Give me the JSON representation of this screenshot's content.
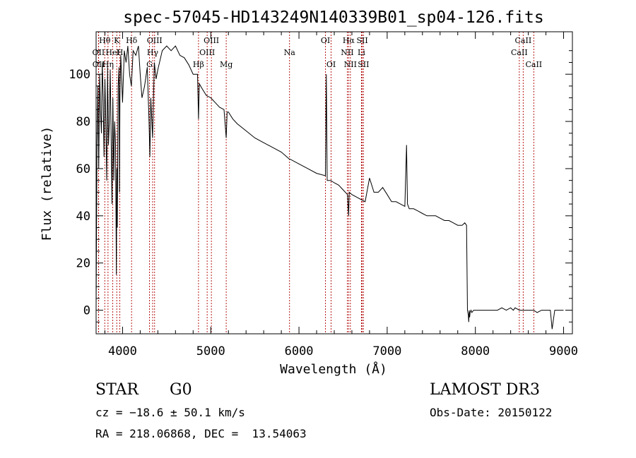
{
  "chart_data": {
    "type": "line",
    "title": "spec-57045-HD143249N140339B01_sp04-126.fits",
    "xlabel": "Wavelength (Å)",
    "ylabel": "Flux (relative)",
    "xlim": [
      3700,
      9100
    ],
    "ylim": [
      -10,
      118
    ],
    "xticks": [
      4000,
      5000,
      6000,
      7000,
      8000,
      9000
    ],
    "yticks": [
      0,
      20,
      40,
      60,
      80,
      100
    ],
    "grid": false,
    "series": [
      {
        "name": "spectrum",
        "x": [
          3700,
          3710,
          3720,
          3730,
          3740,
          3750,
          3760,
          3770,
          3780,
          3790,
          3800,
          3810,
          3820,
          3830,
          3840,
          3850,
          3860,
          3870,
          3880,
          3890,
          3900,
          3910,
          3920,
          3930,
          3935,
          3940,
          3950,
          3960,
          3965,
          3970,
          3980,
          3990,
          4000,
          4020,
          4040,
          4060,
          4080,
          4100,
          4120,
          4150,
          4180,
          4200,
          4220,
          4250,
          4280,
          4300,
          4310,
          4320,
          4340,
          4360,
          4380,
          4400,
          4450,
          4500,
          4550,
          4600,
          4650,
          4700,
          4750,
          4800,
          4850,
          4861,
          4870,
          4900,
          4950,
          5000,
          5050,
          5100,
          5150,
          5175,
          5185,
          5200,
          5250,
          5300,
          5400,
          5500,
          5600,
          5700,
          5800,
          5893,
          5900,
          6000,
          6100,
          6200,
          6300,
          6310,
          6320,
          6360,
          6400,
          6450,
          6500,
          6550,
          6563,
          6570,
          6600,
          6650,
          6700,
          6750,
          6800,
          6850,
          6900,
          6950,
          7000,
          7050,
          7100,
          7150,
          7200,
          7220,
          7230,
          7250,
          7300,
          7350,
          7400,
          7450,
          7500,
          7550,
          7600,
          7650,
          7700,
          7750,
          7800,
          7850,
          7880,
          7900,
          7910,
          7920,
          7925,
          7930,
          7935,
          7940,
          7950,
          7960,
          7980,
          8000,
          8050,
          8100,
          8150,
          8200,
          8250,
          8300,
          8350,
          8400,
          8430,
          8450,
          8500,
          8542,
          8550,
          8600,
          8650,
          8662,
          8700,
          8750,
          8800,
          8850,
          8870,
          8900,
          8950,
          9000
        ],
        "values": [
          0,
          70,
          95,
          60,
          100,
          85,
          75,
          105,
          90,
          65,
          98,
          80,
          55,
          103,
          70,
          80,
          102,
          75,
          45,
          90,
          55,
          80,
          70,
          15,
          60,
          35,
          95,
          103,
          50,
          90,
          108,
          98,
          88,
          110,
          105,
          112,
          100,
          95,
          110,
          108,
          112,
          100,
          90,
          95,
          103,
          80,
          65,
          90,
          73,
          105,
          98,
          102,
          110,
          112,
          110,
          112,
          108,
          107,
          104,
          100,
          100,
          81,
          96,
          94,
          91,
          90,
          88,
          86,
          85,
          73,
          84,
          84,
          81,
          79,
          76,
          73,
          71,
          69,
          67,
          64,
          64,
          62,
          60,
          58,
          57,
          100,
          55,
          55,
          54,
          53,
          51,
          49,
          40,
          50,
          49,
          48,
          47,
          46,
          56,
          50,
          50,
          52,
          49,
          46,
          46,
          45,
          44,
          70,
          45,
          43,
          43,
          42,
          41,
          40,
          40,
          40,
          39,
          38,
          38,
          37,
          36,
          36,
          37,
          36,
          0,
          -2,
          -5,
          0,
          -3,
          -1,
          0,
          -1,
          0,
          0,
          0,
          0,
          0,
          0,
          0,
          1,
          0,
          1,
          0,
          1,
          0,
          0,
          0,
          0,
          0,
          0,
          -1,
          0,
          0,
          0,
          -8,
          0,
          0,
          0
        ]
      }
    ],
    "lines": [
      {
        "label": "Hθ",
        "x": 3798,
        "row": 1
      },
      {
        "label": "OII",
        "x": 3727,
        "row": 2
      },
      {
        "label": "OII",
        "x": 3729,
        "row": 3
      },
      {
        "label": "Hη",
        "x": 3835,
        "row": 3
      },
      {
        "label": "HeI",
        "x": 3889,
        "row": 2
      },
      {
        "label": "K",
        "x": 3934,
        "row": 1
      },
      {
        "label": "H",
        "x": 3969,
        "row": 2
      },
      {
        "label": "Hδ",
        "x": 4102,
        "row": 1
      },
      {
        "label": "G",
        "x": 4305,
        "row": 3
      },
      {
        "label": "OIII",
        "x": 4363,
        "row": 1
      },
      {
        "label": "Hγ",
        "x": 4341,
        "row": 2
      },
      {
        "label": "Hβ",
        "x": 4861,
        "row": 3
      },
      {
        "label": "OIII",
        "x": 4959,
        "row": 2
      },
      {
        "label": "OIII",
        "x": 5007,
        "row": 1
      },
      {
        "label": "Mg",
        "x": 5175,
        "row": 3
      },
      {
        "label": "Na",
        "x": 5893,
        "row": 2
      },
      {
        "label": "OI",
        "x": 6300,
        "row": 1
      },
      {
        "label": "OI",
        "x": 6364,
        "row": 3
      },
      {
        "label": "Hα",
        "x": 6563,
        "row": 1
      },
      {
        "label": "NII",
        "x": 6548,
        "row": 2
      },
      {
        "label": "NII",
        "x": 6583,
        "row": 3
      },
      {
        "label": "SII",
        "x": 6717,
        "row": 1
      },
      {
        "label": "Li",
        "x": 6708,
        "row": 2
      },
      {
        "label": "SII",
        "x": 6731,
        "row": 3
      },
      {
        "label": "CaII",
        "x": 8542,
        "row": 1
      },
      {
        "label": "CaII",
        "x": 8498,
        "row": 2
      },
      {
        "label": "CaII",
        "x": 8662,
        "row": 3
      }
    ]
  },
  "info": {
    "object_class": "STAR",
    "subclass": "G0",
    "survey": "LAMOST DR3",
    "cz": "cz = −18.6 ± 50.1 km/s",
    "obs_date": "Obs-Date: 20150122",
    "coords": "RA = 218.06868, DEC =  13.54063"
  },
  "colors": {
    "line_marker": "#b00000",
    "spectrum": "#000000"
  }
}
